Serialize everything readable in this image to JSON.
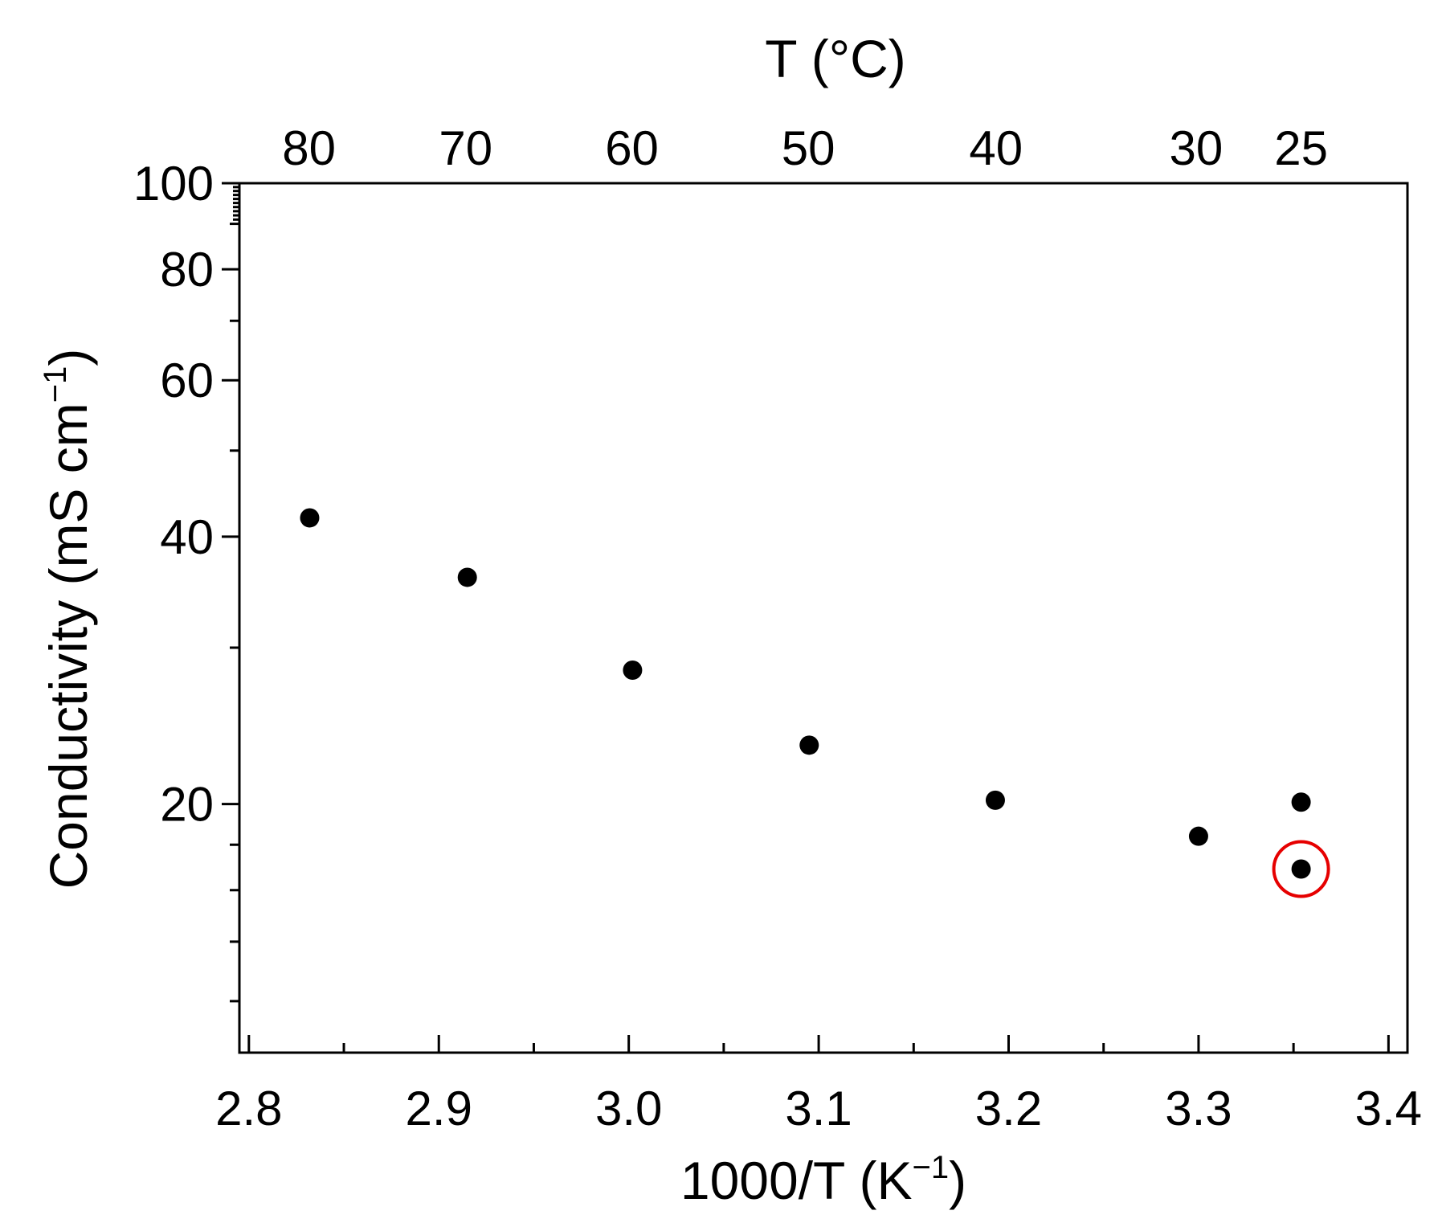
{
  "chart_data": {
    "type": "scatter",
    "title": "",
    "xlabel": "1000/T (K",
    "xlabel_sup": "−1",
    "xlabel_close": ")",
    "ylabel": "Conductivity (mS cm",
    "ylabel_sup": "−1",
    "ylabel_close": ")",
    "top_xlabel": "T (°C)",
    "x_scale": "linear",
    "y_scale": "log",
    "xlim": [
      2.795,
      3.41
    ],
    "ylim": [
      10.5,
      100
    ],
    "grid": false,
    "x_ticks": [
      {
        "value": 2.8,
        "label": "2.8"
      },
      {
        "value": 2.9,
        "label": "2.9"
      },
      {
        "value": 3.0,
        "label": "3.0"
      },
      {
        "value": 3.1,
        "label": "3.1"
      },
      {
        "value": 3.2,
        "label": "3.2"
      },
      {
        "value": 3.3,
        "label": "3.3"
      },
      {
        "value": 3.4,
        "label": "3.4"
      }
    ],
    "x_minor_ticks": [
      2.85,
      2.95,
      3.05,
      3.15,
      3.25,
      3.35
    ],
    "y_ticks": [
      {
        "value": 20,
        "label": "20"
      },
      {
        "value": 40,
        "label": "40"
      },
      {
        "value": 60,
        "label": "60"
      },
      {
        "value": 80,
        "label": "80"
      },
      {
        "value": 100,
        "label": "100"
      }
    ],
    "y_minor_ticks": [
      12,
      14,
      16,
      18,
      30,
      50,
      70,
      90
    ],
    "top_ticks": [
      {
        "celsius": 80,
        "label": "80"
      },
      {
        "celsius": 70,
        "label": "70"
      },
      {
        "celsius": 60,
        "label": "60"
      },
      {
        "celsius": 50,
        "label": "50"
      },
      {
        "celsius": 40,
        "label": "40"
      },
      {
        "celsius": 30,
        "label": "30"
      },
      {
        "celsius": 25,
        "label": "25"
      }
    ],
    "series": [
      {
        "color": "#000000",
        "points": [
          {
            "x": 2.832,
            "y": 42.0
          },
          {
            "x": 2.915,
            "y": 36.0
          },
          {
            "x": 3.002,
            "y": 28.3
          },
          {
            "x": 3.095,
            "y": 23.3
          },
          {
            "x": 3.193,
            "y": 20.2
          },
          {
            "x": 3.3,
            "y": 18.4
          },
          {
            "x": 3.354,
            "y": 20.1
          },
          {
            "x": 3.354,
            "y": 16.9
          }
        ]
      }
    ],
    "highlight": {
      "x": 3.354,
      "y": 16.9,
      "color": "#e60000"
    }
  }
}
